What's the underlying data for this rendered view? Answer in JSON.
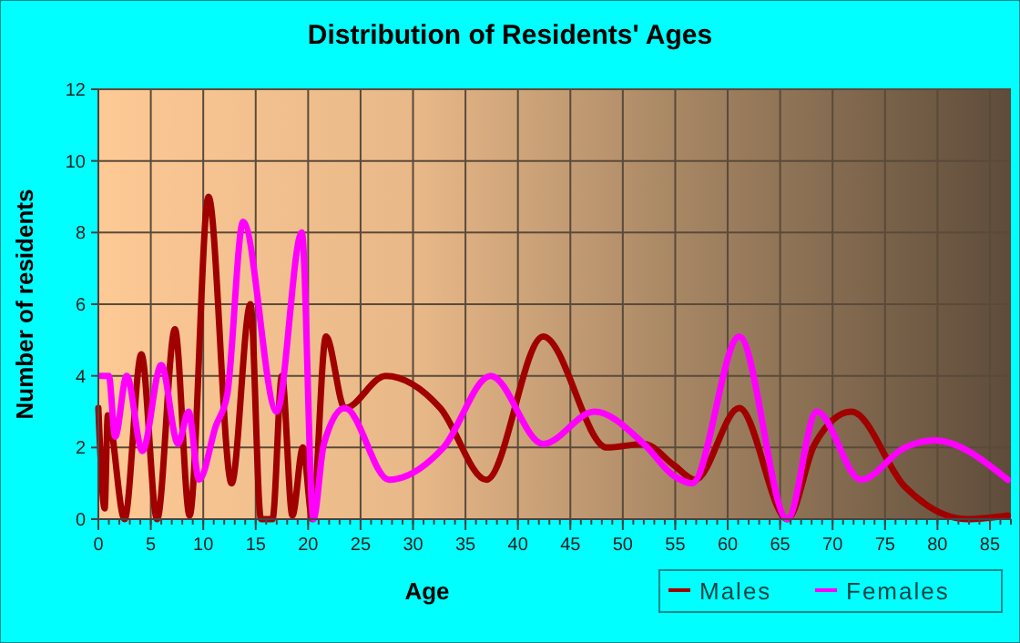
{
  "chart_data": {
    "type": "line",
    "title": "Distribution of Residents' Ages",
    "xlabel": "Age",
    "ylabel": "Number of residents",
    "xlim": [
      0,
      87
    ],
    "xticks": [
      0,
      5,
      10,
      15,
      20,
      25,
      30,
      35,
      40,
      45,
      50,
      55,
      60,
      65,
      70,
      75,
      80,
      85
    ],
    "ylim": [
      0,
      12
    ],
    "yticks": [
      0,
      2,
      4,
      6,
      8,
      10,
      12
    ],
    "grid": true,
    "legend": "bottom right",
    "marker": "none",
    "line_style": "solid",
    "series": [
      {
        "name": "Males",
        "color": "#a00000",
        "x": [
          0,
          0.6,
          0.9,
          2.5,
          4.1,
          5.6,
          7.3,
          8.7,
          10.5,
          12.7,
          14.5,
          15.5,
          16.6,
          17.5,
          18.5,
          19.5,
          20.4,
          21.7,
          23.5,
          27.4,
          32.6,
          37,
          42.4,
          48.5,
          52,
          54.9,
          56.9,
          61.1,
          65.7,
          68.3,
          71.8,
          76.9,
          82.9,
          86.7
        ],
        "values": [
          3.1,
          0.3,
          2.9,
          0,
          4.6,
          0,
          5.3,
          0.1,
          9,
          1,
          6,
          0,
          0,
          4,
          0.1,
          2,
          0,
          5.1,
          3.1,
          4,
          3.1,
          1.1,
          5.1,
          2,
          2.1,
          1.5,
          1.1,
          3.1,
          0,
          2.1,
          3,
          0.9,
          0,
          0.1
        ]
      },
      {
        "name": "Females",
        "color": "#ff00ff",
        "x": [
          0.2,
          1,
          1.6,
          2.7,
          4.2,
          6,
          7.6,
          8.6,
          9.6,
          11.2,
          12.3,
          13.8,
          17,
          19.4,
          20.5,
          21.5,
          23.5,
          27.7,
          32.9,
          37.4,
          42.4,
          47.3,
          52,
          54.9,
          56.6,
          61.1,
          65.7,
          68.5,
          72.7,
          76.9,
          79.7,
          86.7
        ],
        "values": [
          4,
          4,
          2.3,
          4,
          1.9,
          4.3,
          2.1,
          3,
          1.1,
          2.6,
          3.5,
          8.3,
          3,
          8,
          0,
          2.1,
          3.1,
          1.1,
          2,
          4,
          2.1,
          3,
          2.1,
          1.2,
          1,
          5.1,
          0,
          3,
          1.1,
          2,
          2.2,
          1.1
        ]
      }
    ]
  }
}
